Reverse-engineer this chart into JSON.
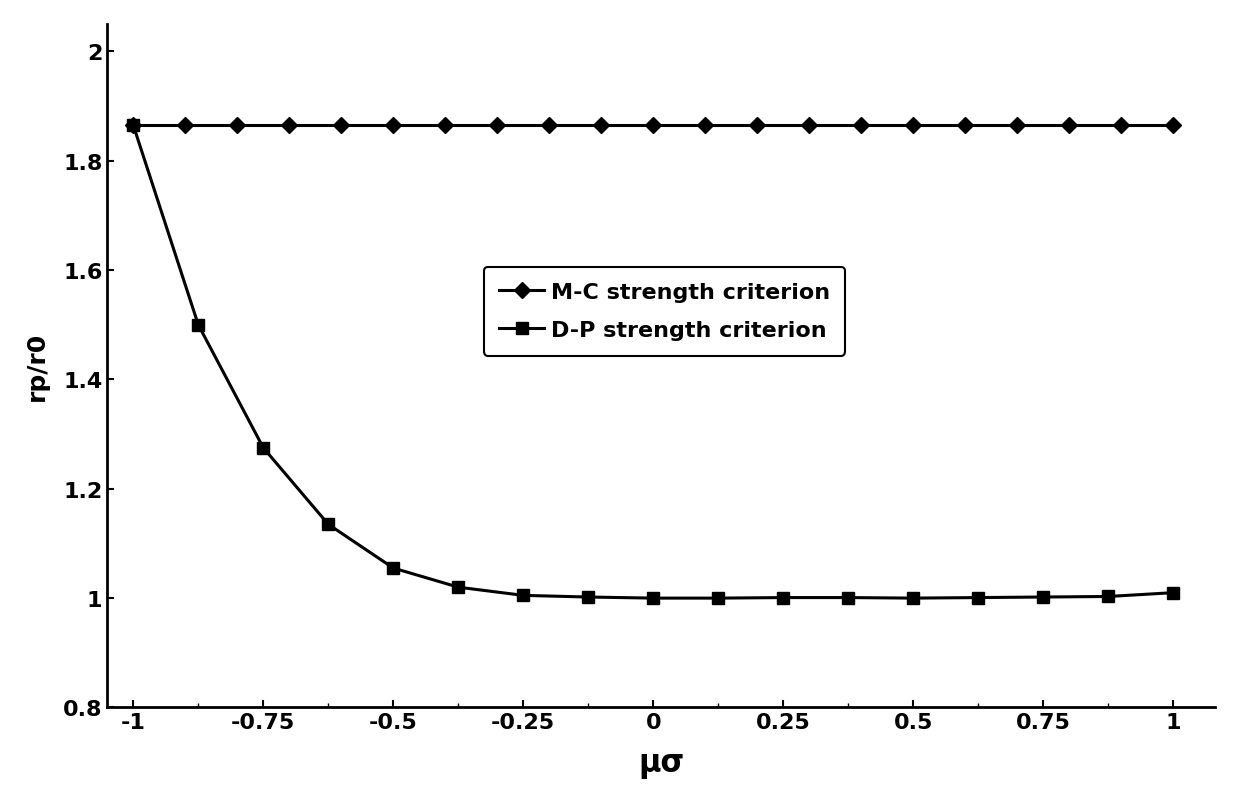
{
  "mc_x": [
    -1.0,
    -0.9,
    -0.8,
    -0.7,
    -0.6,
    -0.5,
    -0.4,
    -0.3,
    -0.2,
    -0.1,
    0.0,
    0.1,
    0.2,
    0.3,
    0.4,
    0.5,
    0.6,
    0.7,
    0.8,
    0.9,
    1.0
  ],
  "mc_y": [
    1.865,
    1.865,
    1.865,
    1.865,
    1.865,
    1.865,
    1.865,
    1.865,
    1.865,
    1.865,
    1.865,
    1.865,
    1.865,
    1.865,
    1.865,
    1.865,
    1.865,
    1.865,
    1.865,
    1.865,
    1.865
  ],
  "dp_x": [
    -1.0,
    -0.875,
    -0.75,
    -0.625,
    -0.5,
    -0.375,
    -0.25,
    -0.125,
    0.0,
    0.125,
    0.25,
    0.375,
    0.5,
    0.625,
    0.75,
    0.875,
    1.0
  ],
  "dp_y": [
    1.865,
    1.5,
    1.275,
    1.135,
    1.055,
    1.02,
    1.005,
    1.002,
    1.0,
    1.0,
    1.001,
    1.001,
    1.0,
    1.001,
    1.002,
    1.003,
    1.01
  ],
  "line_color": "#000000",
  "marker_mc": "D",
  "marker_dp": "s",
  "markersize_mc": 8,
  "markersize_dp": 8,
  "linewidth": 2.2,
  "ylabel": "rp/r0",
  "xlabel": "μσ",
  "xlim": [
    -1.05,
    1.08
  ],
  "ylim": [
    0.8,
    2.05
  ],
  "yticks": [
    0.8,
    1.0,
    1.2,
    1.4,
    1.6,
    1.8,
    2.0
  ],
  "xticks": [
    -1,
    -0.75,
    -0.5,
    -0.25,
    0,
    0.25,
    0.5,
    0.75,
    1
  ],
  "legend_mc": "M-C strength criterion",
  "legend_dp": "D-P strength criterion",
  "xlabel_fontsize": 22,
  "ylabel_fontsize": 18,
  "tick_fontsize": 16,
  "legend_fontsize": 16,
  "background_color": "#ffffff"
}
